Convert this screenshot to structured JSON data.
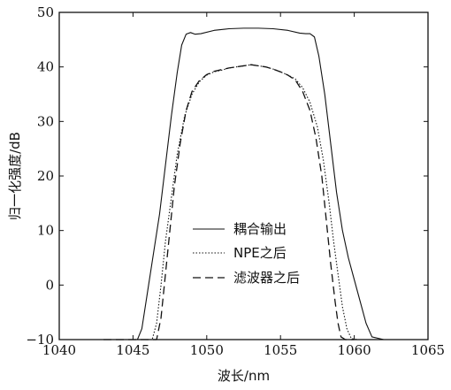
{
  "chart_data": {
    "type": "line",
    "title": "",
    "xlabel": "波长/nm",
    "ylabel": "归一化强度/dB",
    "xlim": [
      1040,
      1065
    ],
    "ylim": [
      -10,
      50
    ],
    "xticks": [
      1040,
      1045,
      1050,
      1055,
      1060,
      1065
    ],
    "yticks": [
      -10,
      0,
      10,
      20,
      30,
      40,
      50
    ],
    "xtick_labels": [
      "1040",
      "1045",
      "1050",
      "1055",
      "1060",
      "1065"
    ],
    "ytick_labels": [
      "−10",
      "0",
      "10",
      "20",
      "30",
      "40",
      "50"
    ],
    "grid": false,
    "legend_position": "center",
    "series": [
      {
        "name": "耦合输出",
        "style": "solid",
        "color": "#111111",
        "x": [
          1042.0,
          1045.3,
          1045.6,
          1046.0,
          1046.4,
          1046.8,
          1047.2,
          1047.6,
          1048.0,
          1048.3,
          1048.6,
          1048.9,
          1049.2,
          1049.6,
          1050.5,
          1051.5,
          1052.5,
          1053.5,
          1054.5,
          1055.5,
          1056.3,
          1056.7,
          1057.0,
          1057.3,
          1057.6,
          1058.0,
          1058.4,
          1058.8,
          1059.2,
          1059.6,
          1060.0,
          1060.4,
          1060.8,
          1061.2,
          1062.0
        ],
        "y": [
          -10,
          -10,
          -8,
          -1,
          6,
          13,
          22,
          31,
          39,
          44,
          46,
          46.3,
          46,
          46.1,
          46.7,
          47.0,
          47.1,
          47.1,
          47.0,
          46.7,
          46.2,
          46.1,
          46.1,
          45.5,
          42,
          35,
          26,
          17,
          10,
          5,
          1,
          -3,
          -7,
          -9.5,
          -10
        ]
      },
      {
        "name": "NPE之后",
        "style": "dotted",
        "color": "#111111",
        "x": [
          1043.0,
          1046.3,
          1046.6,
          1046.9,
          1047.2,
          1047.6,
          1048.0,
          1048.5,
          1049.0,
          1049.5,
          1050.0,
          1050.5,
          1051.0,
          1051.5,
          1052.0,
          1052.5,
          1053.0,
          1053.5,
          1054.0,
          1054.5,
          1055.0,
          1055.5,
          1056.0,
          1056.5,
          1057.0,
          1057.5,
          1057.9,
          1058.3,
          1058.6,
          1058.9,
          1059.2,
          1059.5,
          1059.8,
          1060.2,
          1061.0
        ],
        "y": [
          -10,
          -10,
          -7,
          0,
          8,
          16,
          24,
          31,
          35,
          37.3,
          38.5,
          39.1,
          39.4,
          39.8,
          40.0,
          40.2,
          40.4,
          40.2,
          40.0,
          39.6,
          39.1,
          38.5,
          37.8,
          36.2,
          33.5,
          29,
          23,
          15,
          8,
          2,
          -4,
          -8,
          -9.8,
          -10,
          -10
        ]
      },
      {
        "name": "滤波器之后",
        "style": "dashed",
        "color": "#111111",
        "x": [
          1043.0,
          1046.6,
          1046.9,
          1047.2,
          1047.5,
          1047.8,
          1048.2,
          1048.6,
          1049.0,
          1049.5,
          1050.0,
          1050.5,
          1051.0,
          1051.5,
          1052.0,
          1052.5,
          1053.0,
          1053.5,
          1054.0,
          1054.5,
          1055.0,
          1055.5,
          1056.0,
          1056.5,
          1057.0,
          1057.4,
          1057.8,
          1058.1,
          1058.4,
          1058.7,
          1058.9,
          1059.1,
          1059.4,
          1060.0
        ],
        "y": [
          -10,
          -10,
          -6,
          2,
          10,
          18,
          26,
          32,
          35.5,
          37.5,
          38.6,
          39.2,
          39.5,
          39.8,
          40.0,
          40.2,
          40.4,
          40.2,
          40.0,
          39.6,
          39.1,
          38.5,
          37.6,
          35.5,
          32,
          27,
          20,
          12,
          4,
          -3,
          -7,
          -9.5,
          -10,
          -10
        ]
      }
    ]
  }
}
